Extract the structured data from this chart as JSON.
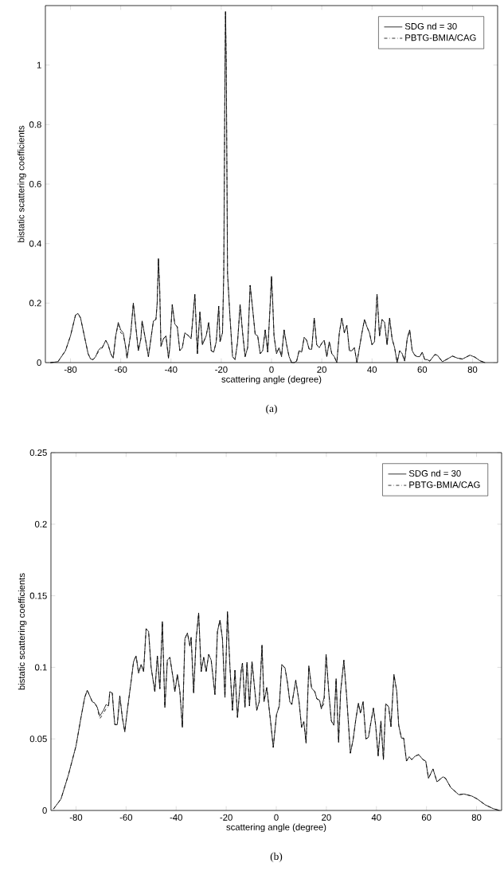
{
  "chart_data": [
    {
      "type": "line",
      "xlabel": "scattering angle (degree)",
      "ylabel": "bistatic scattering coefficients",
      "annotations": [
        "(a)"
      ],
      "xlim": [
        -90,
        90
      ],
      "ylim": [
        0,
        1.2
      ],
      "xticks": [
        -80,
        -60,
        -40,
        -20,
        0,
        20,
        40,
        60,
        80
      ],
      "yticks": [
        0,
        0.2,
        0.4,
        0.6,
        0.8,
        1
      ],
      "legend": "top right",
      "grid": false,
      "x": [
        -88,
        -85,
        -82,
        -80,
        -78,
        -77,
        -76,
        -74,
        -73,
        -72,
        -71,
        -70,
        -69,
        -68,
        -67.5,
        -66.5,
        -66,
        -65,
        -64,
        -63,
        -62,
        -61,
        -60,
        -59,
        -58,
        -57.5,
        -56,
        -55,
        -54,
        -53,
        -52,
        -51.5,
        -50,
        -49,
        -47,
        -46,
        -45.5,
        -45,
        -44.5,
        -44,
        -43,
        -42,
        -41,
        -40.5,
        -39.5,
        -38.5,
        -37.5,
        -36.5,
        -35.5,
        -34.5,
        -33,
        -32,
        -30.5,
        -29.5,
        -28.5,
        -27.5,
        -26,
        -25,
        -24,
        -23,
        -22,
        -21,
        -20.5,
        -19.5,
        -19,
        -18.5,
        -18.3,
        -18,
        -17.5,
        -16.5,
        -15.5,
        -14.5,
        -13.5,
        -12.5,
        -11.5,
        -10.5,
        -9.5,
        -8.5,
        -7.5,
        -6.5,
        -5.5,
        -4.5,
        -3.5,
        -2.5,
        -1.5,
        -0.5,
        0,
        0.5,
        1,
        2,
        3,
        4,
        5,
        6,
        7,
        8,
        9,
        10,
        11,
        12,
        13,
        14,
        15,
        16,
        17,
        18,
        19,
        20,
        21,
        22,
        23,
        24,
        25,
        26,
        27,
        28,
        29,
        30,
        31,
        32,
        33,
        34,
        35,
        36,
        37,
        38,
        39,
        40,
        41,
        42,
        43,
        44,
        45,
        46,
        47,
        48,
        49,
        50,
        51,
        52,
        53,
        54,
        55,
        56,
        57,
        58,
        59,
        60,
        61,
        62,
        63,
        65,
        66,
        68,
        70,
        72,
        74,
        76,
        79,
        81,
        83,
        85
      ],
      "series": [
        {
          "name": "SDG nd = 30",
          "color": "#000000",
          "line_style": "solid",
          "values": [
            0,
            0.003,
            0.04,
            0.09,
            0.16,
            0.165,
            0.15,
            0.07,
            0.03,
            0.012,
            0.01,
            0.02,
            0.04,
            0.05,
            0.048,
            0.065,
            0.075,
            0.06,
            0.03,
            0.015,
            0.09,
            0.135,
            0.11,
            0.1,
            0.05,
            0.015,
            0.1,
            0.2,
            0.12,
            0.04,
            0.08,
            0.14,
            0.07,
            0.02,
            0.14,
            0.145,
            0.2,
            0.35,
            0.25,
            0.055,
            0.08,
            0.09,
            0.015,
            0.05,
            0.195,
            0.13,
            0.12,
            0.04,
            0.05,
            0.1,
            0.09,
            0.08,
            0.23,
            0.03,
            0.17,
            0.06,
            0.09,
            0.135,
            0.04,
            0.035,
            0.07,
            0.19,
            0.07,
            0.1,
            0.3,
            1.0,
            1.18,
            1.0,
            0.3,
            0.15,
            0.02,
            0.01,
            0.07,
            0.195,
            0.1,
            0.02,
            0.05,
            0.26,
            0.18,
            0.095,
            0.09,
            0.03,
            0.04,
            0.11,
            0.035,
            0.2,
            0.29,
            0.2,
            0.09,
            0.03,
            0.05,
            0.02,
            0.11,
            0.06,
            0.02,
            0,
            0,
            0.005,
            0.04,
            0.035,
            0.085,
            0.075,
            0.045,
            0.045,
            0.15,
            0.06,
            0.05,
            0.065,
            0.075,
            0.02,
            0.07,
            0.03,
            0.02,
            0,
            0.1,
            0.15,
            0.1,
            0.125,
            0.04,
            0.04,
            0.05,
            0,
            0.05,
            0.1,
            0.145,
            0.12,
            0.1,
            0.06,
            0.07,
            0.23,
            0.09,
            0.145,
            0.135,
            0.06,
            0.15,
            0.08,
            0.05,
            0,
            0.04,
            0.03,
            0.005,
            0.08,
            0.11,
            0.04,
            0.025,
            0.02,
            0.02,
            0.035,
            0.01,
            0.01,
            0.005,
            0.027,
            0.025,
            0.003,
            0.012,
            0.022,
            0.015,
            0.012,
            0.025,
            0.018,
            0.006,
            0
          ]
        },
        {
          "name": "PBTG-BMIA/CAG",
          "color": "#000000",
          "line_style": "dashdot",
          "values": [
            0,
            0.003,
            0.04,
            0.09,
            0.16,
            0.165,
            0.15,
            0.07,
            0.03,
            0.012,
            0.01,
            0.02,
            0.035,
            0.045,
            0.048,
            0.065,
            0.075,
            0.06,
            0.03,
            0.015,
            0.09,
            0.13,
            0.1,
            0.095,
            0.05,
            0.015,
            0.1,
            0.2,
            0.12,
            0.04,
            0.08,
            0.14,
            0.07,
            0.02,
            0.14,
            0.145,
            0.2,
            0.35,
            0.25,
            0.055,
            0.08,
            0.09,
            0.015,
            0.05,
            0.195,
            0.13,
            0.12,
            0.04,
            0.05,
            0.1,
            0.09,
            0.08,
            0.23,
            0.03,
            0.17,
            0.06,
            0.09,
            0.135,
            0.04,
            0.035,
            0.07,
            0.19,
            0.07,
            0.1,
            0.3,
            1.0,
            1.18,
            1.0,
            0.3,
            0.15,
            0.02,
            0.01,
            0.07,
            0.195,
            0.1,
            0.02,
            0.05,
            0.26,
            0.18,
            0.095,
            0.09,
            0.03,
            0.04,
            0.11,
            0.035,
            0.2,
            0.29,
            0.2,
            0.09,
            0.03,
            0.05,
            0.02,
            0.11,
            0.06,
            0.02,
            0,
            0,
            0.005,
            0.04,
            0.035,
            0.085,
            0.075,
            0.045,
            0.045,
            0.15,
            0.06,
            0.05,
            0.065,
            0.075,
            0.02,
            0.07,
            0.03,
            0.02,
            0,
            0.1,
            0.15,
            0.1,
            0.125,
            0.04,
            0.04,
            0.05,
            0,
            0.05,
            0.1,
            0.145,
            0.12,
            0.1,
            0.06,
            0.07,
            0.23,
            0.09,
            0.145,
            0.135,
            0.06,
            0.15,
            0.08,
            0.05,
            0,
            0.04,
            0.03,
            0.005,
            0.08,
            0.11,
            0.04,
            0.025,
            0.02,
            0.02,
            0.035,
            0.01,
            0.01,
            0.005,
            0.027,
            0.025,
            0.003,
            0.012,
            0.022,
            0.015,
            0.012,
            0.025,
            0.018,
            0.006,
            0
          ]
        }
      ]
    },
    {
      "type": "line",
      "xlabel": "scattering angle (degree)",
      "ylabel": "bistatic scattering coefficients",
      "annotations": [
        "(b)"
      ],
      "xlim": [
        -90,
        90
      ],
      "ylim": [
        0,
        0.25
      ],
      "xticks": [
        -80,
        -60,
        -40,
        -20,
        0,
        20,
        40,
        60,
        80
      ],
      "yticks": [
        0,
        0.05,
        0.1,
        0.15,
        0.2,
        0.25
      ],
      "legend": "top right",
      "grid": false,
      "x": [
        -89,
        -86,
        -83,
        -80,
        -78,
        -76.5,
        -75.5,
        -74.5,
        -73.5,
        -72.5,
        -71.5,
        -70.5,
        -69,
        -68,
        -67,
        -66.5,
        -65.5,
        -65,
        -64.5,
        -63.5,
        -62.5,
        -61.5,
        -60.5,
        -59.5,
        -58,
        -57,
        -56,
        -55,
        -54,
        -53,
        -52,
        -51,
        -50,
        -48.5,
        -47.5,
        -46.5,
        -45.5,
        -44.5,
        -43.5,
        -42.5,
        -41,
        -40.5,
        -39.5,
        -38.5,
        -37.5,
        -36.5,
        -35.5,
        -34.5,
        -34,
        -33,
        -32,
        -31,
        -30,
        -29,
        -28,
        -27,
        -26,
        -24.5,
        -23.5,
        -22.5,
        -21.5,
        -20.5,
        -19.5,
        -18.5,
        -17.5,
        -16.5,
        -15.5,
        -14,
        -13.5,
        -12.5,
        -11.7,
        -10.7,
        -9.7,
        -7.8,
        -6.8,
        -5.7,
        -4.9,
        -3.8,
        -2.2,
        -1.2,
        0.1,
        1.2,
        2.2,
        3.5,
        4.5,
        5.4,
        6.2,
        7.8,
        9.1,
        10.1,
        11,
        11.9,
        13,
        14.1,
        15.4,
        16.2,
        17.3,
        18,
        19.1,
        19.9,
        21,
        22,
        23,
        23.9,
        24.9,
        25.7,
        27,
        28.1,
        29.6,
        30.7,
        31.8,
        32.8,
        33.6,
        34.7,
        35.8,
        36.8,
        37.8,
        38.8,
        39.7,
        40.7,
        41.8,
        42.8,
        43.7,
        44.9,
        45.8,
        47,
        48.1,
        48.9,
        50,
        50.9,
        52,
        53.1,
        54.1,
        55.5,
        56.9,
        58.6,
        59.7,
        60.8,
        62.6,
        64.2,
        66.6,
        67.6,
        69.7,
        72.9,
        75,
        78.2,
        80.3,
        83.4,
        86.6,
        89.2
      ],
      "series": [
        {
          "name": "SDG nd = 30",
          "color": "#000000",
          "line_style": "solid",
          "values": [
            0.001,
            0.008,
            0.025,
            0.045,
            0.065,
            0.079,
            0.084,
            0.08,
            0.076,
            0.075,
            0.072,
            0.066,
            0.07,
            0.074,
            0.073,
            0.083,
            0.082,
            0.07,
            0.06,
            0.06,
            0.08,
            0.065,
            0.055,
            0.07,
            0.09,
            0.104,
            0.108,
            0.096,
            0.102,
            0.097,
            0.127,
            0.125,
            0.1,
            0.083,
            0.108,
            0.085,
            0.132,
            0.072,
            0.105,
            0.107,
            0.09,
            0.083,
            0.095,
            0.083,
            0.058,
            0.12,
            0.124,
            0.115,
            0.121,
            0.082,
            0.12,
            0.138,
            0.097,
            0.107,
            0.097,
            0.109,
            0.105,
            0.081,
            0.125,
            0.133,
            0.12,
            0.079,
            0.139,
            0.1,
            0.07,
            0.098,
            0.065,
            0.098,
            0.103,
            0.072,
            0.1035,
            0.073,
            0.104,
            0.07,
            0.076,
            0.1155,
            0.076,
            0.086,
            0.061,
            0.044,
            0.067,
            0.073,
            0.102,
            0.0995,
            0.089,
            0.076,
            0.074,
            0.091,
            0.076,
            0.058,
            0.062,
            0.047,
            0.101,
            0.0855,
            0.083,
            0.078,
            0.077,
            0.071,
            0.079,
            0.109,
            0.082,
            0.0625,
            0.0595,
            0.092,
            0.0475,
            0.083,
            0.105,
            0.08,
            0.04,
            0.0495,
            0.064,
            0.075,
            0.068,
            0.076,
            0.05,
            0.051,
            0.0615,
            0.0715,
            0.0595,
            0.038,
            0.0625,
            0.0355,
            0.0745,
            0.0725,
            0.0585,
            0.095,
            0.0835,
            0.0595,
            0.0505,
            0.0505,
            0.0345,
            0.0375,
            0.0355,
            0.038,
            0.039,
            0.0355,
            0.0345,
            0.0225,
            0.029,
            0.02,
            0.0235,
            0.0225,
            0.016,
            0.011,
            0.0115,
            0.01,
            0.008,
            0.004,
            0.0013,
            0
          ]
        },
        {
          "name": "PBTG-BMIA/CAG",
          "color": "#000000",
          "line_style": "dashdot",
          "values": [
            0.001,
            0.008,
            0.025,
            0.045,
            0.065,
            0.079,
            0.084,
            0.08,
            0.076,
            0.075,
            0.072,
            0.064,
            0.068,
            0.071,
            0.073,
            0.083,
            0.082,
            0.07,
            0.06,
            0.06,
            0.08,
            0.065,
            0.055,
            0.07,
            0.09,
            0.104,
            0.108,
            0.096,
            0.102,
            0.097,
            0.127,
            0.125,
            0.1,
            0.083,
            0.108,
            0.085,
            0.132,
            0.072,
            0.105,
            0.107,
            0.09,
            0.083,
            0.095,
            0.083,
            0.058,
            0.12,
            0.124,
            0.115,
            0.121,
            0.082,
            0.12,
            0.138,
            0.097,
            0.107,
            0.097,
            0.109,
            0.105,
            0.081,
            0.125,
            0.133,
            0.12,
            0.079,
            0.139,
            0.1,
            0.07,
            0.098,
            0.065,
            0.098,
            0.103,
            0.072,
            0.1035,
            0.073,
            0.104,
            0.07,
            0.076,
            0.1155,
            0.076,
            0.086,
            0.061,
            0.044,
            0.067,
            0.073,
            0.102,
            0.0995,
            0.089,
            0.076,
            0.074,
            0.091,
            0.076,
            0.058,
            0.062,
            0.047,
            0.101,
            0.0855,
            0.083,
            0.078,
            0.077,
            0.071,
            0.075,
            0.109,
            0.082,
            0.0625,
            0.0595,
            0.092,
            0.0475,
            0.083,
            0.105,
            0.08,
            0.04,
            0.0495,
            0.064,
            0.075,
            0.068,
            0.076,
            0.05,
            0.051,
            0.0615,
            0.0715,
            0.0595,
            0.038,
            0.0625,
            0.0355,
            0.0745,
            0.0725,
            0.0585,
            0.095,
            0.0835,
            0.0595,
            0.0505,
            0.0505,
            0.0345,
            0.0375,
            0.0355,
            0.038,
            0.039,
            0.0355,
            0.0345,
            0.0225,
            0.029,
            0.02,
            0.0235,
            0.0225,
            0.016,
            0.011,
            0.0115,
            0.01,
            0.008,
            0.004,
            0.0013,
            0
          ]
        }
      ]
    }
  ]
}
